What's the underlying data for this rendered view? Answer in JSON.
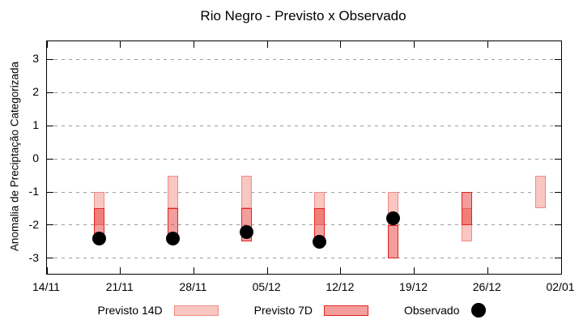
{
  "title": "Rio Negro - Previsto x Observado",
  "colors": {
    "previsto14_fill": "#f9c6c2",
    "previsto14_border": "#ef8c82",
    "previsto7_fill": "rgba(228,40,35,0.45)",
    "previsto7_border": "#e2231e",
    "observado": "#000000",
    "grid": "#9c9c9c",
    "axis": "#000000"
  },
  "legend": {
    "items": [
      {
        "label": "Previsto 14D",
        "swatch": "previsto14"
      },
      {
        "label": "Previsto 7D",
        "swatch": "previsto7"
      },
      {
        "label": "Observado",
        "swatch": "dot"
      }
    ]
  },
  "chart_data": {
    "type": "bar",
    "subtype": "floating-range-bars-with-scatter",
    "title": "Rio Negro - Previsto x Observado",
    "xlabel": "",
    "ylabel": "Anomalia de Preciptação Categorizada",
    "ylim": [
      -3.47,
      3.55
    ],
    "yticks": [
      3,
      2,
      1,
      0,
      -1,
      -2,
      -3
    ],
    "x_span_days": 49,
    "xticks": [
      {
        "day": 0,
        "label": "14/11"
      },
      {
        "day": 7,
        "label": "21/11"
      },
      {
        "day": 14,
        "label": "28/11"
      },
      {
        "day": 21,
        "label": "05/12"
      },
      {
        "day": 28,
        "label": "12/12"
      },
      {
        "day": 35,
        "label": "19/12"
      },
      {
        "day": 42,
        "label": "26/12"
      },
      {
        "day": 49,
        "label": "02/01"
      }
    ],
    "grid": "horizontal-dashed",
    "legend_position": "bottom-center",
    "series": [
      {
        "name": "Previsto 14D",
        "type": "floating-bar",
        "points": [
          {
            "date": "19/11",
            "day": 5,
            "low": -2.0,
            "high": -1.0
          },
          {
            "date": "26/11",
            "day": 12,
            "low": -1.5,
            "high": -0.5
          },
          {
            "date": "03/12",
            "day": 19,
            "low": -1.5,
            "high": -0.5
          },
          {
            "date": "10/12",
            "day": 26,
            "low": -2.0,
            "high": -1.0
          },
          {
            "date": "17/12",
            "day": 33,
            "low": -2.0,
            "high": -1.0
          },
          {
            "date": "24/12",
            "day": 40,
            "low": -2.5,
            "high": -1.5
          },
          {
            "date": "31/12",
            "day": 47,
            "low": -1.5,
            "high": -0.5
          }
        ]
      },
      {
        "name": "Previsto 7D",
        "type": "floating-bar",
        "points": [
          {
            "date": "19/11",
            "day": 5,
            "low": -2.5,
            "high": -1.5
          },
          {
            "date": "26/11",
            "day": 12,
            "low": -2.5,
            "high": -1.5
          },
          {
            "date": "03/12",
            "day": 19,
            "low": -2.5,
            "high": -1.5
          },
          {
            "date": "10/12",
            "day": 26,
            "low": -2.5,
            "high": -1.5
          },
          {
            "date": "17/12",
            "day": 33,
            "low": -3.0,
            "high": -2.0
          },
          {
            "date": "24/12",
            "day": 40,
            "low": -2.0,
            "high": -1.0
          }
        ]
      },
      {
        "name": "Observado",
        "type": "scatter",
        "points": [
          {
            "date": "19/11",
            "day": 5,
            "value": -2.4
          },
          {
            "date": "26/11",
            "day": 12,
            "value": -2.4
          },
          {
            "date": "03/12",
            "day": 19,
            "value": -2.2
          },
          {
            "date": "10/12",
            "day": 26,
            "value": -2.5
          },
          {
            "date": "17/12",
            "day": 33,
            "value": -1.8
          }
        ]
      }
    ]
  }
}
